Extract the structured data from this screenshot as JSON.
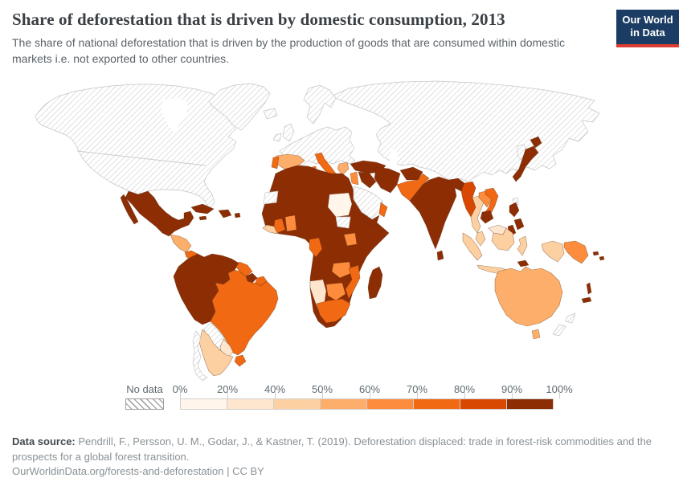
{
  "header": {
    "title": "Share of deforestation that is driven by domestic consumption, 2013",
    "subtitle": "The share of national deforestation that is driven by the production of goods that are consumed within domestic markets i.e. not exported to other countries."
  },
  "logo": {
    "line1": "Our World",
    "line2": "in Data",
    "background": "#1c3d63",
    "accent": "#dc3c31"
  },
  "legend": {
    "no_data_label": "No data",
    "ticks": [
      "0%",
      "20%",
      "40%",
      "50%",
      "60%",
      "70%",
      "80%",
      "90%",
      "100%"
    ]
  },
  "chart_data": {
    "type": "choropleth",
    "title": "Share of deforestation that is driven by domestic consumption, 2013",
    "unit": "%",
    "legend_ticks": [
      "0%",
      "20%",
      "40%",
      "50%",
      "60%",
      "70%",
      "80%",
      "90%",
      "100%"
    ],
    "no_data_style": "white with gray diagonal hatch",
    "bins": [
      {
        "range": "0-20%",
        "color": "#fff5eb"
      },
      {
        "range": "20-40%",
        "color": "#fee6ce"
      },
      {
        "range": "40-50%",
        "color": "#fdd0a2"
      },
      {
        "range": "50-60%",
        "color": "#fdae6b"
      },
      {
        "range": "60-70%",
        "color": "#fd8d3c"
      },
      {
        "range": "70-80%",
        "color": "#f16913"
      },
      {
        "range": "80-90%",
        "color": "#d94801"
      },
      {
        "range": "90-100%",
        "color": "#8c2d04"
      }
    ],
    "regions": [
      {
        "id": "north-america",
        "name": "United States & Canada",
        "bin": 0
      },
      {
        "id": "greenland",
        "name": "Greenland",
        "bin": 0
      },
      {
        "id": "mexico",
        "name": "Mexico & Guatemala",
        "bin": 8
      },
      {
        "id": "baja-california",
        "name": "Baja California (Mexico)",
        "bin": 8
      },
      {
        "id": "honduras-nicaragua",
        "name": "Honduras & Nicaragua",
        "bin": 4
      },
      {
        "id": "costa-rica-panama",
        "name": "Costa Rica & Panama",
        "bin": 6
      },
      {
        "id": "cuba",
        "name": "Cuba",
        "bin": 8
      },
      {
        "id": "hispaniola",
        "name": "Hispaniola",
        "bin": 8
      },
      {
        "id": "jamaica",
        "name": "Jamaica",
        "bin": 8
      },
      {
        "id": "puerto-rico",
        "name": "Puerto Rico",
        "bin": 8
      },
      {
        "id": "andes-north",
        "name": "Colombia, Venezuela, Ecuador & Peru",
        "bin": 8
      },
      {
        "id": "guyana",
        "name": "Guyana",
        "bin": 6
      },
      {
        "id": "suriname",
        "name": "Suriname",
        "bin": 8
      },
      {
        "id": "french-guiana",
        "name": "French Guiana",
        "bin": 6
      },
      {
        "id": "brazil",
        "name": "Brazil",
        "bin": 6
      },
      {
        "id": "bolivia",
        "name": "Bolivia",
        "bin": 0
      },
      {
        "id": "paraguay",
        "name": "Paraguay",
        "bin": 2
      },
      {
        "id": "argentina",
        "name": "Argentina",
        "bin": 3
      },
      {
        "id": "chile",
        "name": "Chile",
        "bin": 0
      },
      {
        "id": "uruguay",
        "name": "Uruguay",
        "bin": 6
      },
      {
        "id": "iceland",
        "name": "Iceland",
        "bin": 0
      },
      {
        "id": "great-britain",
        "name": "United Kingdom",
        "bin": 0
      },
      {
        "id": "ireland",
        "name": "Ireland",
        "bin": 0
      },
      {
        "id": "scandinavia",
        "name": "Scandinavia",
        "bin": 0
      },
      {
        "id": "europe-mainland",
        "name": "Mainland Europe",
        "bin": 0
      },
      {
        "id": "spain",
        "name": "Spain",
        "bin": 4
      },
      {
        "id": "portugal",
        "name": "Portugal",
        "bin": 6
      },
      {
        "id": "italy",
        "name": "Italy",
        "bin": 6
      },
      {
        "id": "sicily",
        "name": "Sicily (Italy)",
        "bin": 6
      },
      {
        "id": "sardinia",
        "name": "Sardinia (Italy)",
        "bin": 6
      },
      {
        "id": "greece",
        "name": "Greece",
        "bin": 4
      },
      {
        "id": "russia-china-central-asia",
        "name": "Russia, China & Central Asia",
        "bin": 0
      },
      {
        "id": "turkey",
        "name": "Turkey",
        "bin": 8
      },
      {
        "id": "levant",
        "name": "Syria & Jordan",
        "bin": 5
      },
      {
        "id": "iraq",
        "name": "Iraq",
        "bin": 8
      },
      {
        "id": "iran",
        "name": "Iran",
        "bin": 8
      },
      {
        "id": "saudi-arabia",
        "name": "Saudi Arabia",
        "bin": 0
      },
      {
        "id": "yemen",
        "name": "Yemen",
        "bin": 8
      },
      {
        "id": "oman",
        "name": "Oman",
        "bin": 6
      },
      {
        "id": "afghanistan",
        "name": "Afghanistan",
        "bin": 8
      },
      {
        "id": "pakistan",
        "name": "Pakistan",
        "bin": 6
      },
      {
        "id": "india",
        "name": "India",
        "bin": 8
      },
      {
        "id": "sri-lanka",
        "name": "Sri Lanka",
        "bin": 8
      },
      {
        "id": "myanmar",
        "name": "Myanmar",
        "bin": 7
      },
      {
        "id": "thailand",
        "name": "Thailand",
        "bin": 3
      },
      {
        "id": "laos",
        "name": "Laos",
        "bin": 5
      },
      {
        "id": "vietnam",
        "name": "Vietnam",
        "bin": 6
      },
      {
        "id": "cambodia",
        "name": "Cambodia",
        "bin": 8
      },
      {
        "id": "malay-peninsula",
        "name": "Peninsular Malaysia",
        "bin": 3
      },
      {
        "id": "korea",
        "name": "Korea",
        "bin": 0
      },
      {
        "id": "taiwan",
        "name": "Taiwan",
        "bin": 0
      },
      {
        "id": "japan",
        "name": "Japan",
        "bin": 8
      },
      {
        "id": "hokkaido",
        "name": "Hokkaido (Japan)",
        "bin": 8
      },
      {
        "id": "philippines-north",
        "name": "Philippines (Luzon)",
        "bin": 8
      },
      {
        "id": "philippines-central",
        "name": "Philippines (Visayas)",
        "bin": 8
      },
      {
        "id": "philippines-south",
        "name": "Philippines (Mindanao)",
        "bin": 8
      },
      {
        "id": "sumatra",
        "name": "Sumatra (Indonesia)",
        "bin": 3
      },
      {
        "id": "java",
        "name": "Java (Indonesia)",
        "bin": 3
      },
      {
        "id": "borneo-malaysia",
        "name": "Malaysian Borneo",
        "bin": 2
      },
      {
        "id": "borneo-indonesia",
        "name": "Kalimantan (Indonesia)",
        "bin": 3
      },
      {
        "id": "sulawesi",
        "name": "Sulawesi (Indonesia)",
        "bin": 3
      },
      {
        "id": "west-papua",
        "name": "Western New Guinea (Indonesia)",
        "bin": 3
      },
      {
        "id": "papua-new-guinea",
        "name": "Papua New Guinea",
        "bin": 5
      },
      {
        "id": "timor",
        "name": "Timor-Leste",
        "bin": 8
      },
      {
        "id": "solomon-1",
        "name": "Solomon Islands",
        "bin": 8
      },
      {
        "id": "solomon-2",
        "name": "Solomon Islands",
        "bin": 8
      },
      {
        "id": "vanuatu",
        "name": "Vanuatu",
        "bin": 8
      },
      {
        "id": "new-caledonia",
        "name": "New Caledonia",
        "bin": 8
      },
      {
        "id": "australia",
        "name": "Australia",
        "bin": 4
      },
      {
        "id": "tasmania",
        "name": "Tasmania (Australia)",
        "bin": 4
      },
      {
        "id": "new-zealand-north",
        "name": "New Zealand (North Island)",
        "bin": 0
      },
      {
        "id": "new-zealand-south",
        "name": "New Zealand (South Island)",
        "bin": 0
      },
      {
        "id": "africa-mainland",
        "name": "Africa (most countries)",
        "bin": 8
      },
      {
        "id": "western-sahara",
        "name": "Western Sahara",
        "bin": 0
      },
      {
        "id": "sudan",
        "name": "Sudan",
        "bin": 1
      },
      {
        "id": "south-sudan",
        "name": "South Sudan",
        "bin": 0
      },
      {
        "id": "liberia-sierra-leone",
        "name": "Liberia & Sierra Leone",
        "bin": 3
      },
      {
        "id": "cote-divoire",
        "name": "Cote d'Ivoire",
        "bin": 6
      },
      {
        "id": "ghana-togo-benin",
        "name": "Ghana, Togo & Benin",
        "bin": 5
      },
      {
        "id": "gabon-congo",
        "name": "Gabon & Congo",
        "bin": 6
      },
      {
        "id": "uganda-kenya",
        "name": "Uganda & Kenya",
        "bin": 5
      },
      {
        "id": "zambia",
        "name": "Zambia",
        "bin": 5
      },
      {
        "id": "namibia",
        "name": "Namibia",
        "bin": 2
      },
      {
        "id": "botswana",
        "name": "Botswana",
        "bin": 5
      },
      {
        "id": "south-africa",
        "name": "South Africa",
        "bin": 6
      },
      {
        "id": "mozambique",
        "name": "Mozambique",
        "bin": 6
      },
      {
        "id": "madagascar",
        "name": "Madagascar",
        "bin": 8
      }
    ]
  },
  "footer": {
    "source_label": "Data source:",
    "source_text": " Pendrill, F., Persson, U. M., Godar, J., & Kastner, T. (2019). Deforestation displaced: trade in forest-risk commodities and the prospects for a global forest transition.",
    "url": "OurWorldinData.org/forests-and-deforestation",
    "divider": " | ",
    "license": "CC BY"
  }
}
